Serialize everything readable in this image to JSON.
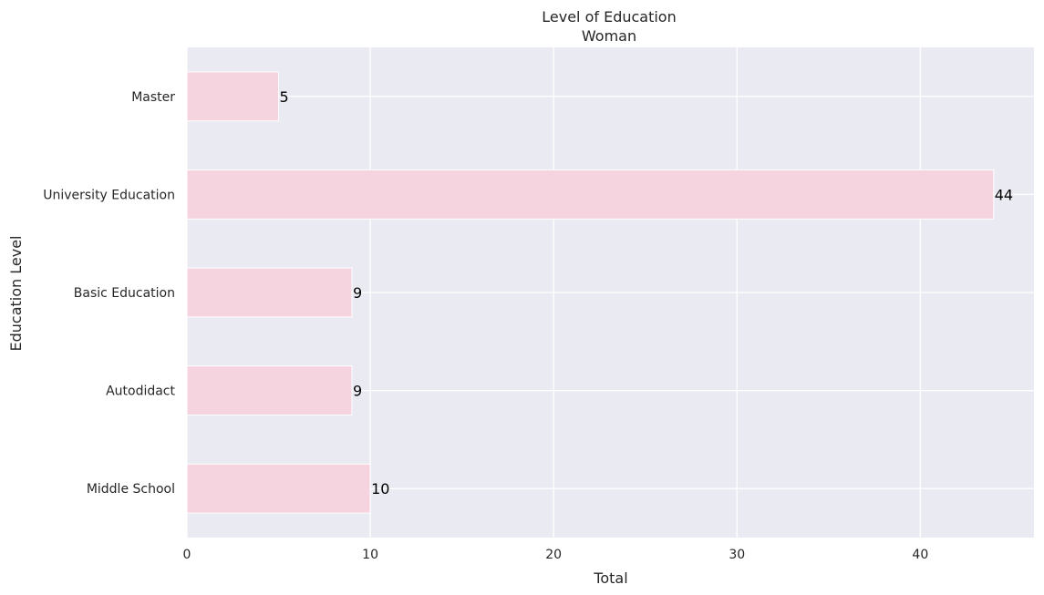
{
  "chart_data": {
    "type": "bar",
    "orientation": "horizontal",
    "title": "Level of Education",
    "subtitle": "Woman",
    "xlabel": "Total",
    "ylabel": "Education Level",
    "categories": [
      "Master",
      "University Education",
      "Basic Education",
      "Autodidact",
      "Middle School"
    ],
    "values": [
      5,
      44,
      9,
      9,
      10
    ],
    "data_labels": [
      "5",
      "44",
      "9",
      "9",
      "10"
    ],
    "xlim": [
      0,
      46.2
    ],
    "xticks": [
      0,
      10,
      20,
      30,
      40
    ],
    "xtick_labels": [
      "0",
      "10",
      "20",
      "30",
      "40"
    ],
    "grid": true,
    "colors": {
      "bar": "#f5d3df",
      "bar_edge": "#ffffff",
      "plot_background": "#eaeaf2",
      "grid": "#ffffff"
    }
  }
}
